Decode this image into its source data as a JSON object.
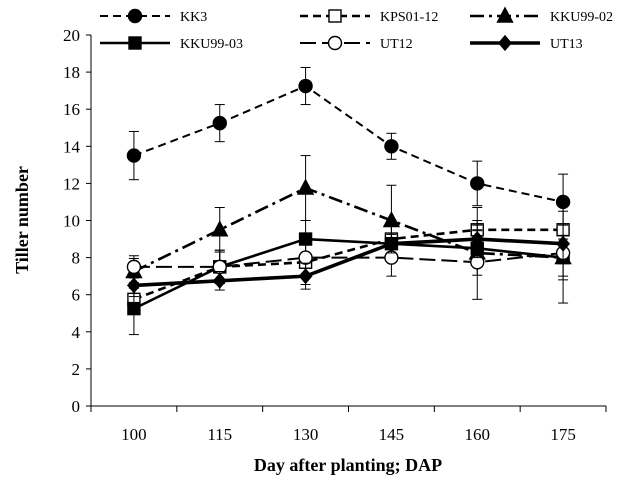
{
  "chart_data": {
    "type": "line",
    "title": "",
    "xlabel": "Day after planting; DAP",
    "ylabel": "Tiller number",
    "x": [
      100,
      115,
      130,
      145,
      160,
      175
    ],
    "ylim": [
      0,
      20
    ],
    "yticks": [
      0,
      2,
      4,
      6,
      8,
      10,
      12,
      14,
      16,
      18,
      20
    ],
    "grid": false,
    "legend_position": "top",
    "series": [
      {
        "name": "KK3",
        "values": [
          13.5,
          15.25,
          17.25,
          14.0,
          12.0,
          11.0
        ],
        "errors": [
          1.3,
          1.0,
          1.0,
          0.7,
          1.2,
          1.5
        ],
        "line": "dash",
        "weight": "normal",
        "marker": "circle",
        "marker_fill": "#000000",
        "color": "#000000"
      },
      {
        "name": "KPS01-12",
        "values": [
          5.75,
          7.5,
          7.75,
          9.0,
          9.5,
          9.5
        ],
        "errors": [
          0.6,
          0.9,
          1.2,
          0.8,
          1.2,
          1.0
        ],
        "line": "dash",
        "weight": "bold",
        "marker": "square",
        "marker_fill": "#ffffff",
        "color": "#000000"
      },
      {
        "name": "KKU99-02",
        "values": [
          7.25,
          9.5,
          11.75,
          10.0,
          8.25,
          8.0
        ],
        "errors": [
          0.7,
          1.2,
          1.75,
          1.9,
          1.2,
          1.0
        ],
        "line": "dashdot",
        "weight": "bold",
        "marker": "triangle",
        "marker_fill": "#000000",
        "color": "#000000"
      },
      {
        "name": "KKU99-03",
        "values": [
          5.25,
          7.5,
          9.0,
          8.75,
          8.5,
          8.0
        ],
        "errors": [
          1.4,
          0.9,
          1.0,
          1.0,
          1.0,
          1.2
        ],
        "line": "solid",
        "weight": "bold",
        "marker": "square",
        "marker_fill": "#000000",
        "color": "#000000"
      },
      {
        "name": "UT12",
        "values": [
          7.5,
          7.5,
          8.0,
          8.0,
          7.75,
          8.25
        ],
        "errors": [
          0.6,
          0.8,
          0.9,
          1.0,
          2.0,
          2.7
        ],
        "line": "longdash",
        "weight": "normal",
        "marker": "circle",
        "marker_fill": "#ffffff",
        "color": "#000000"
      },
      {
        "name": "UT13",
        "values": [
          6.5,
          6.75,
          7.0,
          8.75,
          9.0,
          8.75
        ],
        "errors": [
          0.6,
          0.5,
          0.7,
          0.5,
          1.0,
          1.0
        ],
        "line": "solid",
        "weight": "heavy",
        "marker": "diamond",
        "marker_fill": "#000000",
        "color": "#000000"
      }
    ]
  }
}
